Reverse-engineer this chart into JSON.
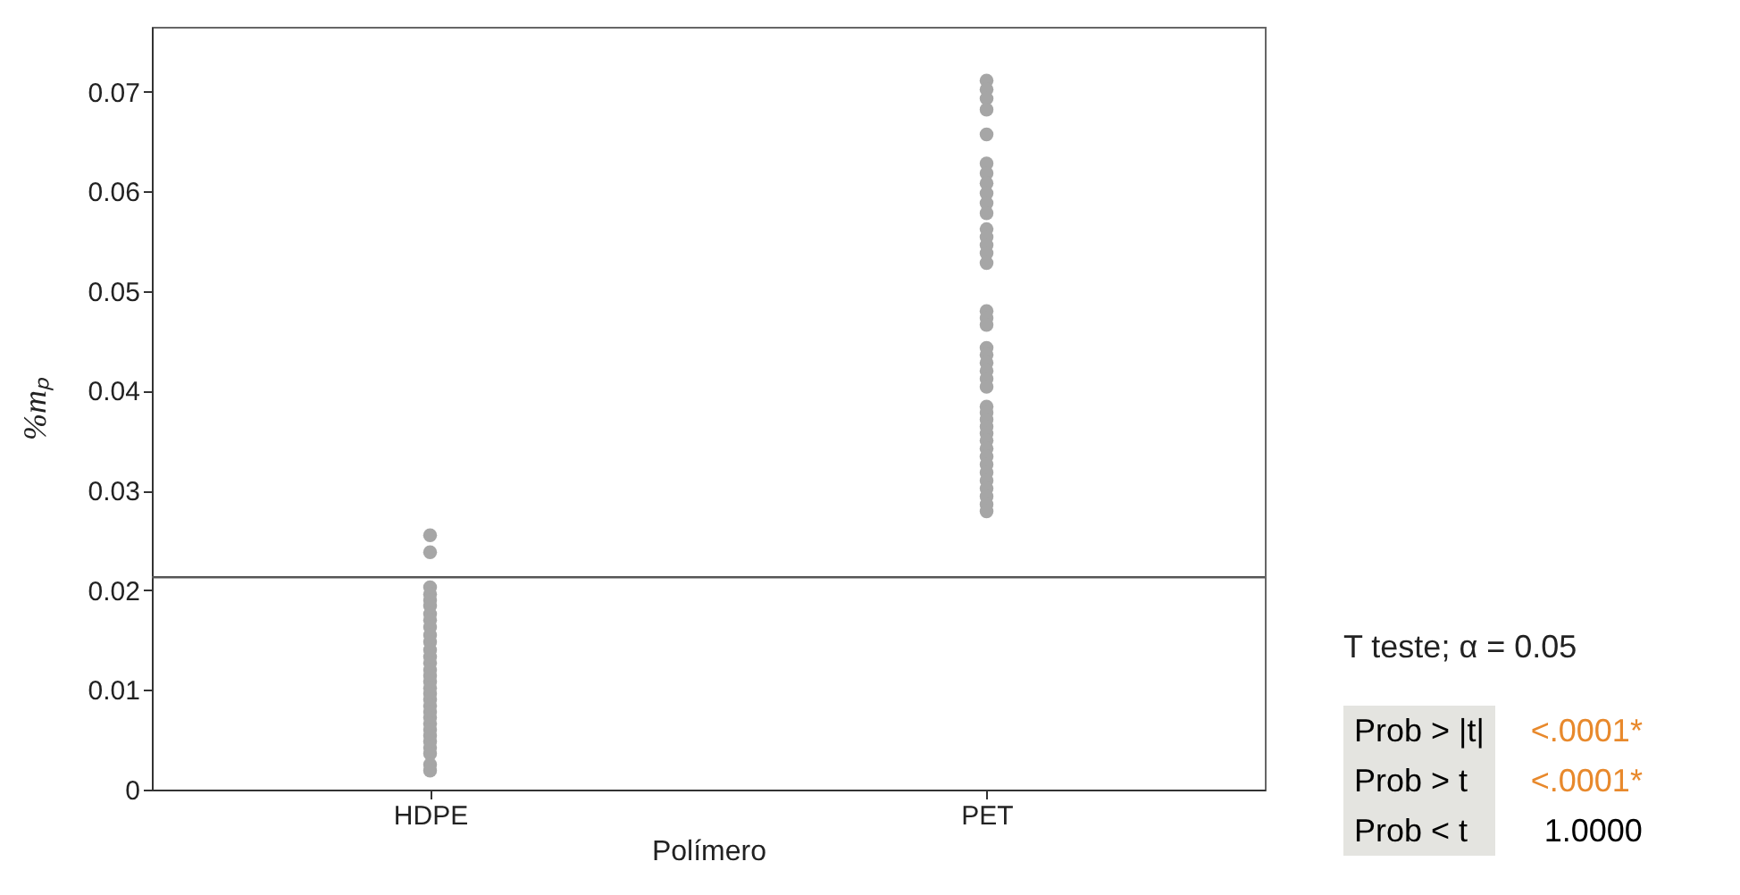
{
  "chart_data": {
    "type": "scatter",
    "categories": [
      "HDPE",
      "PET"
    ],
    "xlabel": "Polímero",
    "ylabel": "%mₚ",
    "ylim": [
      0,
      0.0765
    ],
    "yticks": [
      0,
      0.01,
      0.02,
      0.03,
      0.04,
      0.05,
      0.06,
      0.07
    ],
    "grid": false,
    "legend": false,
    "marker": "circle",
    "series": [
      {
        "color": "#a6a6a6",
        "x": [
          "HDPE",
          "HDPE",
          "HDPE",
          "HDPE",
          "HDPE",
          "HDPE",
          "HDPE",
          "HDPE",
          "HDPE",
          "HDPE",
          "HDPE",
          "HDPE",
          "HDPE",
          "HDPE",
          "HDPE",
          "HDPE",
          "HDPE",
          "HDPE",
          "HDPE",
          "HDPE",
          "HDPE",
          "HDPE",
          "HDPE",
          "HDPE",
          "HDPE",
          "HDPE",
          "HDPE",
          "HDPE",
          "HDPE",
          "HDPE",
          "HDPE"
        ],
        "values": [
          0.0255,
          0.0238,
          0.0203,
          0.0196,
          0.019,
          0.0184,
          0.0176,
          0.017,
          0.0163,
          0.0155,
          0.0148,
          0.014,
          0.0133,
          0.0127,
          0.012,
          0.0114,
          0.0108,
          0.0102,
          0.0096,
          0.009,
          0.0084,
          0.0078,
          0.0072,
          0.0066,
          0.006,
          0.0054,
          0.0048,
          0.0042,
          0.0036,
          0.0025,
          0.0019
        ]
      },
      {
        "color": "#a6a6a6",
        "x": [
          "PET",
          "PET",
          "PET",
          "PET",
          "PET",
          "PET",
          "PET",
          "PET",
          "PET",
          "PET",
          "PET",
          "PET",
          "PET",
          "PET",
          "PET",
          "PET",
          "PET",
          "PET",
          "PET",
          "PET",
          "PET",
          "PET",
          "PET",
          "PET",
          "PET",
          "PET",
          "PET",
          "PET",
          "PET",
          "PET",
          "PET",
          "PET",
          "PET",
          "PET",
          "PET",
          "PET",
          "PET",
          "PET",
          "PET",
          "PET"
        ],
        "values": [
          0.0711,
          0.0702,
          0.0693,
          0.0682,
          0.0657,
          0.0628,
          0.0618,
          0.0608,
          0.0598,
          0.0588,
          0.0578,
          0.0562,
          0.0554,
          0.0546,
          0.0538,
          0.0528,
          0.048,
          0.0473,
          0.0466,
          0.0443,
          0.0436,
          0.0428,
          0.042,
          0.0412,
          0.0404,
          0.0384,
          0.0378,
          0.0371,
          0.0364,
          0.0357,
          0.035,
          0.0342,
          0.0334,
          0.0326,
          0.0318,
          0.031,
          0.0302,
          0.0294,
          0.0286,
          0.0279
        ]
      }
    ],
    "ref_lines": [
      {
        "axis": "y",
        "value": 0.0213,
        "color": "#555555"
      }
    ],
    "annotations": [
      "T teste; α = 0.05",
      "Prob > |t|",
      "<.0001*",
      "Prob > t",
      "<.0001*",
      "Prob < t",
      "1.0000"
    ]
  }
}
